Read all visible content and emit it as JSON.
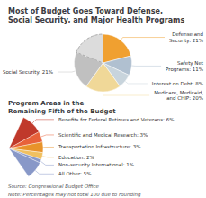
{
  "chart_data": [
    {
      "type": "pie",
      "title": "Most of Budget Goes Toward Defense,\nSocial Security, and Major Health Programs",
      "categories": [
        "Defense and\nSecurity: 21%",
        "Safety Net\nPrograms: 11%",
        "Interest on Debt: 8%",
        "Medicare, Medicaid,\nand CHIP: 20%",
        "Social Security: 21%",
        null
      ],
      "values": [
        21,
        11,
        8,
        20,
        21,
        19
      ],
      "colors": [
        "#f0a030",
        "#b0c0d0",
        "#c8d4dc",
        "#f0d898",
        "#c0c0c0",
        "#dcdcdc"
      ]
    },
    {
      "type": "pie",
      "title": "Program Areas in the\nRemaining Fifth of the Budget",
      "categories": [
        "Benefits for Federal Retirees and Veterans: 6%",
        "Scientific and Medical Research: 3%",
        "Transportation Infrastructure: 3%",
        "Education: 2%",
        "Non-security International: 1%",
        "All Other: 5%"
      ],
      "values": [
        6,
        3,
        3,
        2,
        1,
        5
      ],
      "colors": [
        "#c0392b",
        "#e8623a",
        "#e8932a",
        "#f0c060",
        "#8898c8",
        "#8898c8"
      ],
      "annotations": [
        "Source: Congressional Budget Office",
        "Note: Percentages may not total 100 due to rounding"
      ]
    }
  ]
}
